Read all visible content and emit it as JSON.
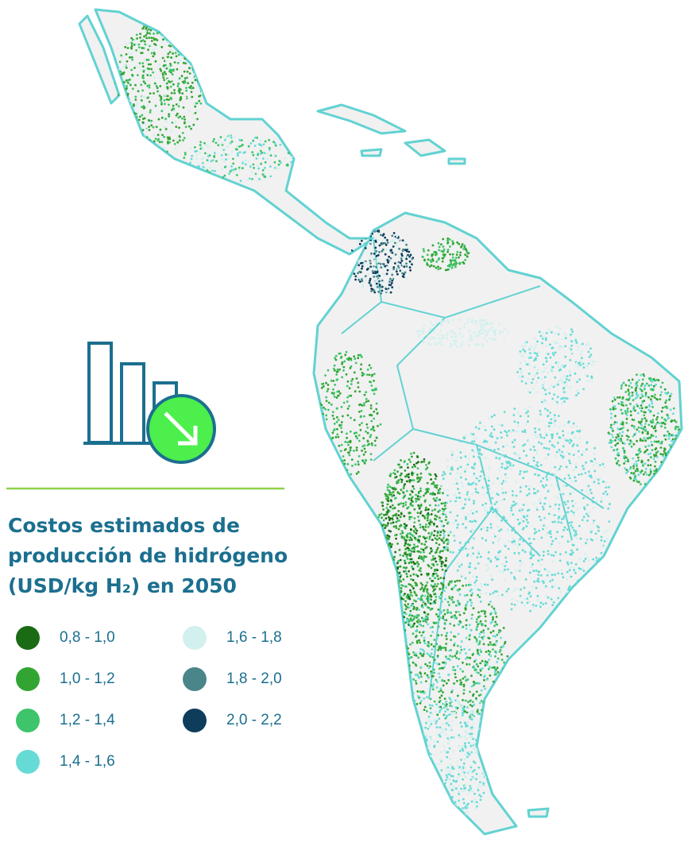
{
  "title": [
    "Costos estimados de",
    "producción de hidrógeno",
    "(USD/kg H₂) en 2050"
  ],
  "legend": [
    {
      "label": "0,8 - 1,0",
      "color": "#1a6b14"
    },
    {
      "label": "1,0 - 1,2",
      "color": "#32a432"
    },
    {
      "label": "1,2 - 1,4",
      "color": "#3ec46a"
    },
    {
      "label": "1,4 - 1,6",
      "color": "#66dbd6"
    },
    {
      "label": "1,6 - 1,8",
      "color": "#d2f0ee"
    },
    {
      "label": "1,8 - 2,0",
      "color": "#4a8589"
    },
    {
      "label": "2,0 - 2,2",
      "color": "#0e3d5c"
    }
  ]
}
